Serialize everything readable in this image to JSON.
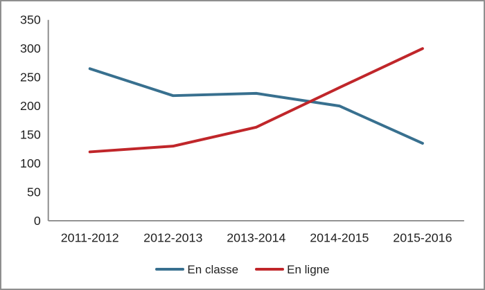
{
  "chart_data": {
    "type": "line",
    "title": "",
    "xlabel": "",
    "ylabel": "",
    "categories": [
      "2011-2012",
      "2012-2013",
      "2013-2014",
      "2014-2015",
      "2015-2016"
    ],
    "series": [
      {
        "name": "En classe",
        "color": "#38708F",
        "values": [
          265,
          218,
          222,
          200,
          135
        ]
      },
      {
        "name": "En ligne",
        "color": "#C0262A",
        "values": [
          120,
          130,
          163,
          232,
          300
        ]
      }
    ],
    "ylim": [
      0,
      350
    ],
    "ytick_step": 50,
    "y_ticks": [
      0,
      50,
      100,
      150,
      200,
      250,
      300,
      350
    ],
    "grid": false,
    "legend_position": "bottom"
  },
  "colors": {
    "axis": "#8C8C8C",
    "text": "#1F1F1F",
    "frame_border": "#8F8F8F",
    "background": "#FFFFFF"
  }
}
